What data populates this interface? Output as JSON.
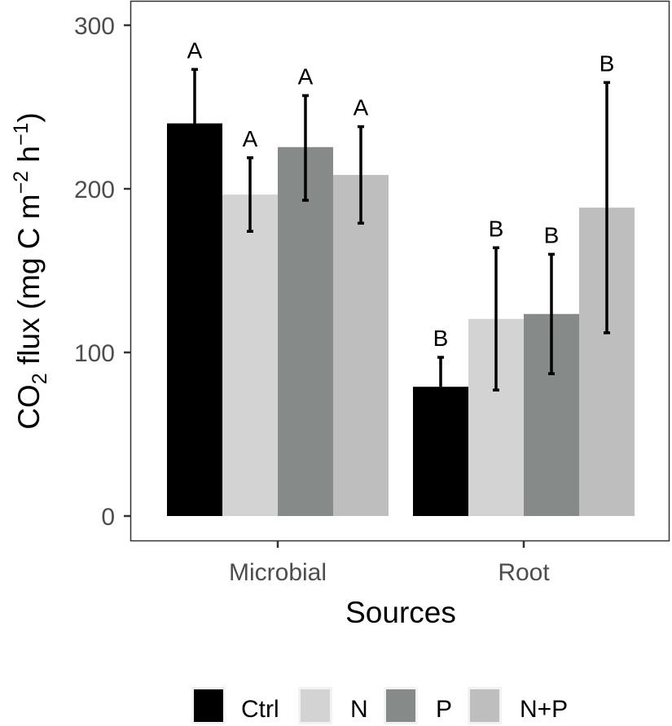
{
  "chart_data": {
    "type": "bar",
    "title": "",
    "xlabel": "Sources",
    "ylabel": {
      "main": "CO",
      "sub": "2",
      "rest": " flux (mg C m",
      "sup1": "−2",
      "mid": " h",
      "sup2": "−1",
      "end": ")"
    },
    "ylim": [
      0,
      300
    ],
    "yticks": [
      "0",
      "100",
      "200",
      "300"
    ],
    "ytick_values": [
      0,
      100,
      200,
      300
    ],
    "categories": [
      "Microbial",
      "Root"
    ],
    "legend_position": "bottom",
    "series": [
      {
        "name": "Ctrl",
        "color": "#000000",
        "values": [
          240,
          79
        ],
        "error_low": [
          null,
          null
        ],
        "error_high": [
          273,
          97
        ],
        "letters": [
          "A",
          "B"
        ]
      },
      {
        "name": "N",
        "color": "#d3d3d3",
        "values": [
          196.5,
          120.5
        ],
        "error_low": [
          174,
          77
        ],
        "error_high": [
          219,
          164
        ],
        "letters": [
          "A",
          "B"
        ]
      },
      {
        "name": "P",
        "color": "#868b89",
        "values": [
          225.5,
          123.5
        ],
        "error_low": [
          193,
          87
        ],
        "error_high": [
          257,
          160
        ],
        "letters": [
          "A",
          "B"
        ]
      },
      {
        "name": "N+P",
        "color": "#bebebe",
        "values": [
          208.5,
          188.5
        ],
        "error_low": [
          179,
          112
        ],
        "error_high": [
          238,
          265
        ],
        "letters": [
          "A",
          "B"
        ]
      }
    ]
  }
}
